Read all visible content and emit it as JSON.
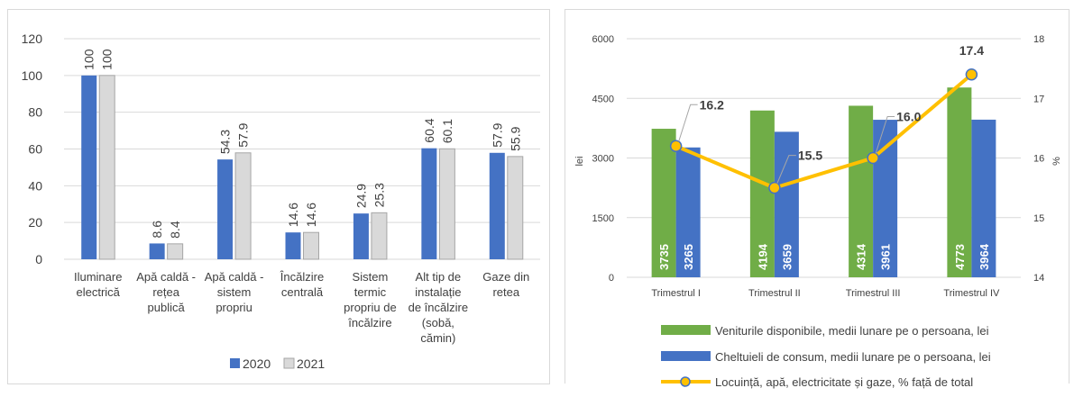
{
  "chart_data": [
    {
      "type": "bar",
      "categories": [
        [
          "Iluminare",
          "electrică"
        ],
        [
          "Apă caldă -",
          "rețea",
          "publică"
        ],
        [
          "Apă caldă -",
          "sistem",
          "propriu"
        ],
        [
          "Încălzire",
          "centrală"
        ],
        [
          "Sistem",
          "termic",
          "propriu de",
          "încălzire"
        ],
        [
          "Alt tip de",
          "instalație",
          "de încălzire",
          "(sobă,",
          "cămin)"
        ],
        [
          "Gaze din",
          "retea"
        ]
      ],
      "series": [
        {
          "name": "2020",
          "values": [
            100,
            8.6,
            54.3,
            14.6,
            24.9,
            60.4,
            57.9
          ],
          "labels": [
            "100",
            "8.6",
            "54.3",
            "14.6",
            "24.9",
            "60.4",
            "57.9"
          ],
          "color": "#4472c4"
        },
        {
          "name": "2021",
          "values": [
            100,
            8.4,
            57.9,
            14.6,
            25.3,
            60.1,
            55.9
          ],
          "labels": [
            "100",
            "8.4",
            "57.9",
            "14.6",
            "25.3",
            "60.1",
            "55.9"
          ],
          "color": "#d9d9d9"
        }
      ],
      "ylim": [
        0,
        120
      ],
      "yticks": [
        "0",
        "20",
        "40",
        "60",
        "80",
        "100",
        "120"
      ],
      "grid": true,
      "legend": "bottom"
    },
    {
      "type": "bar",
      "categories": [
        "Trimestrul I",
        "Trimestrul II",
        "Trimestrul III",
        "Trimestrul IV"
      ],
      "ylabel": "lei",
      "y2label": "%",
      "ylim": [
        0,
        6000
      ],
      "yticks": [
        "0",
        "1500",
        "3000",
        "4500",
        "6000"
      ],
      "y2lim": [
        14,
        18
      ],
      "y2ticks": [
        "14",
        "15",
        "16",
        "17",
        "18"
      ],
      "series": [
        {
          "name": "Veniturile disponibile, medii lunare pe o persoana, lei",
          "type": "bar",
          "axis": "left",
          "values": [
            3735,
            4194,
            4314,
            4773
          ],
          "labels": [
            "3735",
            "4194",
            "4314",
            "4773"
          ],
          "color": "#70ad47"
        },
        {
          "name": "Cheltuieli de consum,  medii lunare pe o persoana, lei",
          "type": "bar",
          "axis": "left",
          "values": [
            3265,
            3659,
            3961,
            3964
          ],
          "labels": [
            "3265",
            "3659",
            "3961",
            "3964"
          ],
          "color": "#4472c4"
        },
        {
          "name": "Locuință, apă, electricitate și gaze, % față de total",
          "type": "line",
          "axis": "right",
          "values": [
            16.2,
            15.5,
            16.0,
            17.4
          ],
          "labels": [
            "16.2",
            "15.5",
            "16.0",
            "17.4"
          ],
          "color": "#ffc000"
        }
      ],
      "grid": true,
      "legend": "bottom"
    }
  ]
}
